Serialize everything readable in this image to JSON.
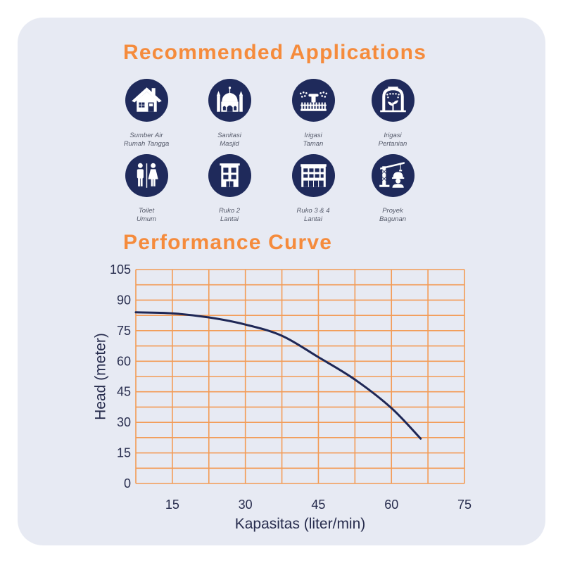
{
  "colors": {
    "page_background": "#ffffff",
    "card_background": "#e7eaf3",
    "accent_orange": "#f58b3c",
    "icon_navy": "#1f2a5b",
    "grid_orange": "#f39b55",
    "curve_navy": "#1e2756"
  },
  "applications": {
    "title": "Recommended Applications",
    "items": [
      {
        "icon": "house-icon",
        "line1": "Sumber Air",
        "line2": "Rumah Tangga"
      },
      {
        "icon": "mosque-icon",
        "line1": "Sanitasi",
        "line2": "Masjid"
      },
      {
        "icon": "garden-sprinkler-icon",
        "line1": "Irigasi",
        "line2": "Taman"
      },
      {
        "icon": "farm-irrigation-icon",
        "line1": "Irigasi",
        "line2": "Pertanian"
      },
      {
        "icon": "public-toilet-icon",
        "line1": "Toilet",
        "line2": "Umum"
      },
      {
        "icon": "shophouse-2-floor-icon",
        "line1": "Ruko 2",
        "line2": "Lantai"
      },
      {
        "icon": "shophouse-3-4-floor-icon",
        "line1": "Ruko 3 & 4",
        "line2": "Lantai"
      },
      {
        "icon": "construction-project-icon",
        "line1": "Proyek",
        "line2": "Bagunan"
      }
    ]
  },
  "chart_data": {
    "type": "line",
    "title": "Performance Curve",
    "xlabel": "Kapasitas (liter/min)",
    "ylabel": "Head (meter)",
    "xlim": [
      7.5,
      75
    ],
    "ylim": [
      0,
      105
    ],
    "xticks": [
      15,
      30,
      45,
      60,
      75
    ],
    "yticks": [
      0,
      15,
      30,
      45,
      60,
      75,
      90,
      105
    ],
    "grid": true,
    "series": [
      {
        "x": [
          7.5,
          15,
          22.5,
          30,
          37.5,
          45,
          52.5,
          60,
          66
        ],
        "y": [
          84,
          83.5,
          81.5,
          78,
          72.5,
          62,
          51,
          37,
          22
        ]
      }
    ]
  }
}
